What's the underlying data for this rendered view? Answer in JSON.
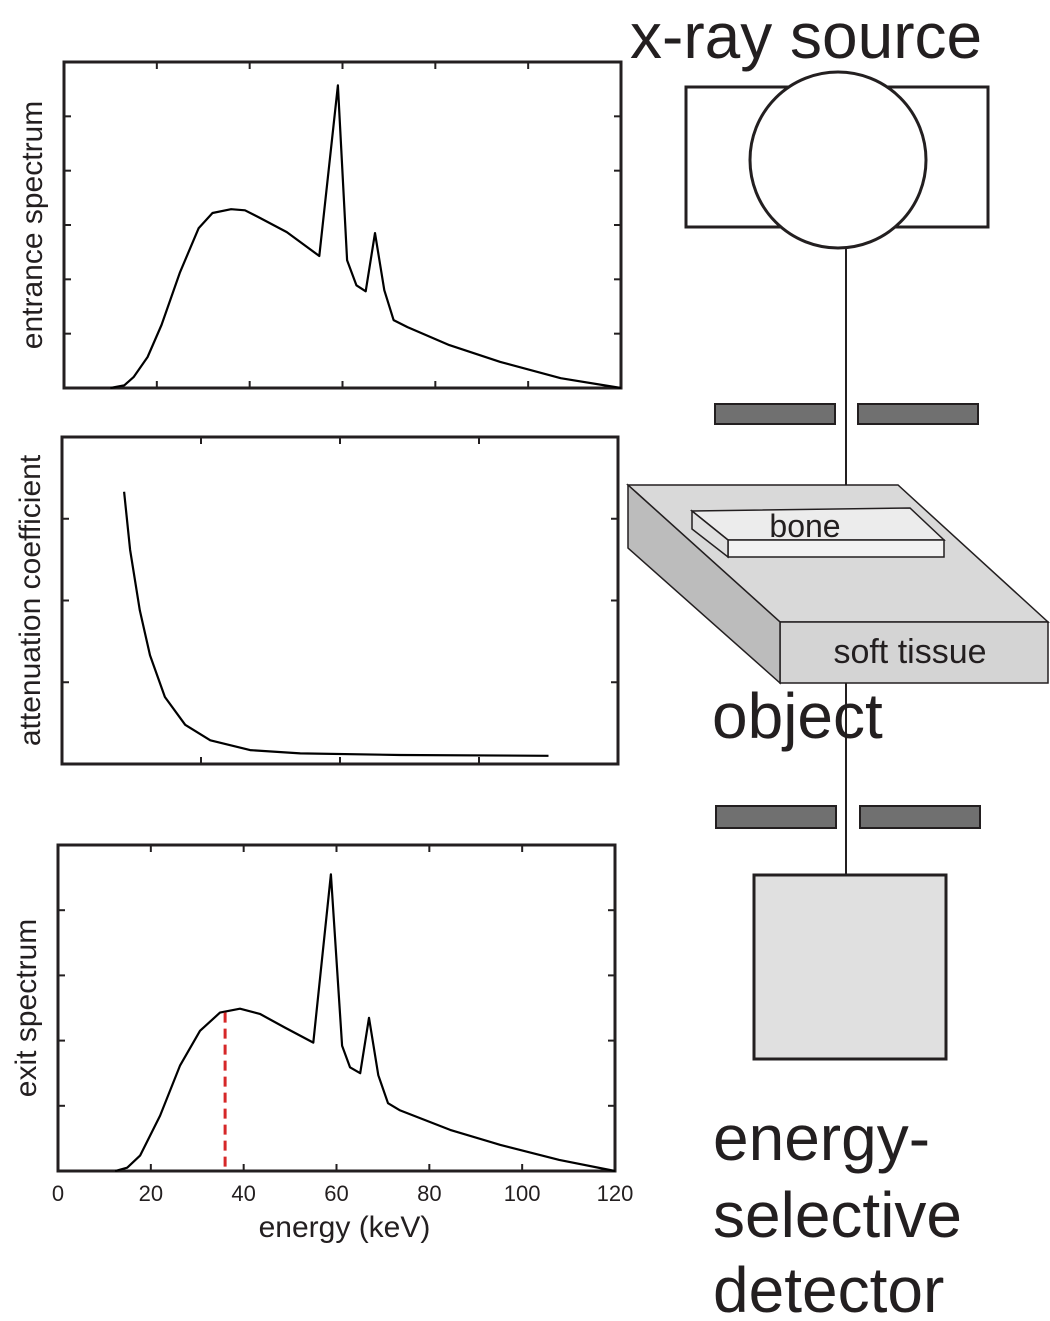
{
  "chart_data": [
    {
      "type": "line",
      "ylabel": "entrance spectrum",
      "color": "#000000",
      "x": [
        10,
        13,
        15,
        18,
        21,
        25,
        29,
        32,
        36,
        39,
        42,
        48,
        55,
        59,
        61,
        63,
        65,
        67,
        69,
        71,
        74,
        83,
        94,
        107,
        120
      ],
      "values": [
        0,
        0.05,
        0.2,
        0.57,
        1.16,
        2.13,
        2.94,
        3.22,
        3.29,
        3.27,
        3.14,
        2.87,
        2.43,
        5.57,
        2.35,
        1.89,
        1.78,
        2.85,
        1.8,
        1.25,
        1.12,
        0.79,
        0.48,
        0.18,
        0
      ],
      "xlim": [
        0,
        120
      ],
      "xticks": [
        20,
        40,
        60,
        80,
        100
      ],
      "ylim": [
        0,
        6
      ],
      "yticks": [
        1,
        2,
        3,
        4,
        5
      ],
      "xtick_labels": false,
      "ytick_labels": false
    },
    {
      "type": "line",
      "ylabel": "attenuation coefficient",
      "color": "#000000",
      "x": [
        13.4,
        14.7,
        16.8,
        19,
        22.2,
        26.6,
        32,
        40.6,
        51.4,
        73,
        105
      ],
      "values": [
        3.33,
        2.62,
        1.88,
        1.33,
        0.82,
        0.48,
        0.29,
        0.17,
        0.13,
        0.11,
        0.1
      ],
      "xlim": [
        0,
        120
      ],
      "xticks": [
        30,
        60,
        90
      ],
      "ylim": [
        0,
        4
      ],
      "yticks": [
        1,
        2,
        3
      ],
      "xtick_labels": false,
      "ytick_labels": false
    },
    {
      "type": "line",
      "ylabel": "exit spectrum",
      "xlabel": "energy (keV)",
      "color": "#000000",
      "x": [
        12.3,
        14.9,
        17.7,
        22,
        26.3,
        30.6,
        34.9,
        39.2,
        43.5,
        48.9,
        55,
        58.8,
        61.2,
        62.9,
        65.1,
        67,
        69,
        71.1,
        73.7,
        84.5,
        95.3,
        108,
        120
      ],
      "values": [
        0,
        0.05,
        0.24,
        0.85,
        1.62,
        2.15,
        2.43,
        2.49,
        2.41,
        2.2,
        1.97,
        4.55,
        1.92,
        1.59,
        1.5,
        2.35,
        1.47,
        1.04,
        0.93,
        0.63,
        0.4,
        0.17,
        0
      ],
      "xlim": [
        0,
        120
      ],
      "xticks": [
        0,
        20,
        40,
        60,
        80,
        100,
        120
      ],
      "ylim": [
        0,
        5
      ],
      "yticks": [
        1,
        2,
        3,
        4
      ],
      "xtick_labels": true,
      "ytick_labels": false,
      "marker": {
        "x": 36,
        "top": 2.43,
        "color": "#d62728"
      }
    }
  ],
  "diagram": {
    "source": "x-ray source",
    "bone": "bone",
    "tissue": "soft tissue",
    "object": "object",
    "detector": [
      "energy-",
      "selective",
      "detector"
    ]
  }
}
